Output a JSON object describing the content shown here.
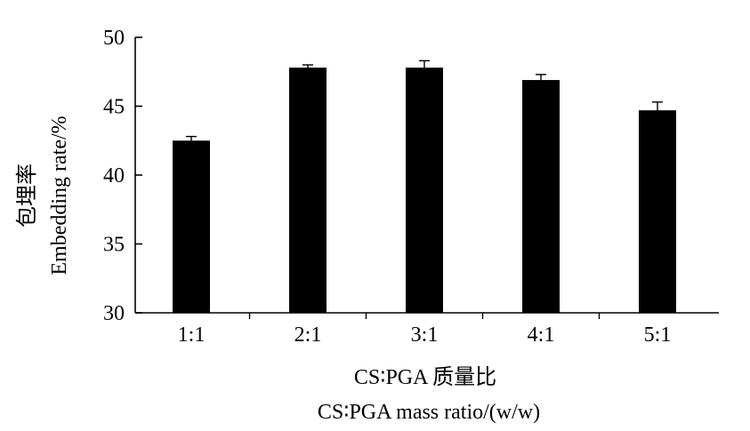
{
  "chart_data": {
    "type": "bar",
    "categories": [
      "1:1",
      "2:1",
      "3:1",
      "4:1",
      "5:1"
    ],
    "values": [
      42.5,
      47.8,
      47.8,
      46.9,
      44.7
    ],
    "errors": [
      0.3,
      0.2,
      0.5,
      0.4,
      0.6
    ],
    "ylim": [
      30,
      50
    ],
    "yticks": [
      "30",
      "35",
      "40",
      "45",
      "50"
    ],
    "ylabel_cn": "包埋率",
    "ylabel_en": "Embedding rate/%",
    "xlabel_cn": "CS∶PGA 质量比",
    "xlabel_en": "CS∶PGA mass ratio/(w/w)",
    "bar_color": "#000000",
    "grid": false
  }
}
